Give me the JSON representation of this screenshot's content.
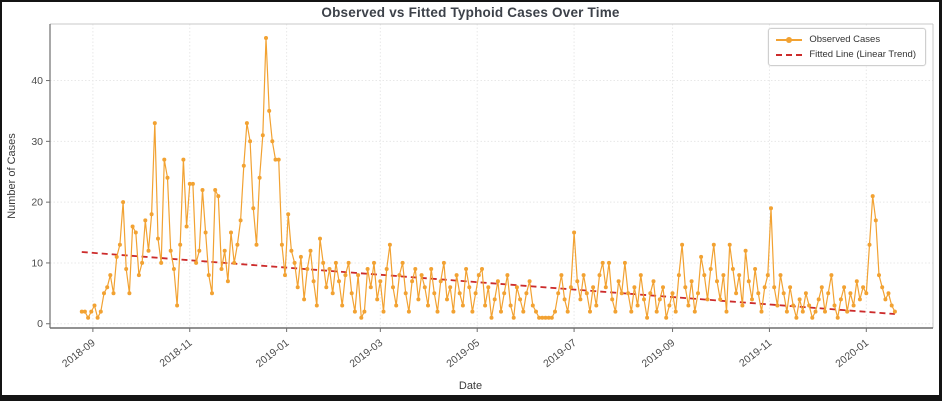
{
  "figure": {
    "title": "Observed vs Fitted Typhoid Cases Over Time",
    "xlabel": "Date",
    "ylabel": "Number of Cases"
  },
  "legend": {
    "items": [
      {
        "label": "Observed Cases",
        "marker": "line-with-dot"
      },
      {
        "label": "Fitted Line (Linear Trend)",
        "marker": "dashed-line"
      }
    ],
    "position": "upper right"
  },
  "colors": {
    "observed": "#F2A232",
    "fitted": "#CC2B2B",
    "title_text": "#3C4149",
    "tick_text": "#4D4D4D",
    "grid": "#E8E8E8",
    "spine_dark": "#6E6E6E",
    "spine_light": "#C9C9C9",
    "frame": "#141414",
    "background": "#FFFFFF"
  },
  "chart_data": {
    "type": "line",
    "title": "Observed vs Fitted Typhoid Cases Over Time",
    "xlabel": "Date",
    "ylabel": "Number of Cases",
    "grid": true,
    "legend_position": "upper right",
    "x_tick_labels": [
      "2018-09",
      "2018-11",
      "2019-01",
      "2019-03",
      "2019-05",
      "2019-07",
      "2019-09",
      "2019-11",
      "2020-01"
    ],
    "x_tick_day_offsets": [
      7,
      68,
      129,
      188,
      249,
      310,
      372,
      433,
      494
    ],
    "y_ticks": [
      0,
      10,
      20,
      30,
      40
    ],
    "ylim": [
      0,
      48
    ],
    "x_start_date": "2018-08-25",
    "x_end_date": "2020-01-19",
    "x_step_days": 2,
    "total_days": 512,
    "series": [
      {
        "name": "Observed Cases",
        "style": "solid-line-with-markers",
        "color": "#F2A232",
        "values": [
          2,
          2,
          1,
          2,
          3,
          1,
          2,
          5,
          6,
          8,
          5,
          11,
          13,
          20,
          9,
          5,
          16,
          15,
          8,
          10,
          17,
          12,
          18,
          33,
          14,
          10,
          27,
          24,
          12,
          9,
          3,
          13,
          27,
          16,
          23,
          23,
          10,
          12,
          22,
          15,
          8,
          5,
          22,
          21,
          9,
          12,
          7,
          15,
          10,
          13,
          17,
          26,
          33,
          30,
          19,
          13,
          24,
          31,
          47,
          35,
          30,
          27,
          27,
          13,
          8,
          18,
          12,
          10,
          6,
          11,
          4,
          9,
          12,
          7,
          3,
          14,
          10,
          6,
          9,
          5,
          10,
          7,
          3,
          8,
          10,
          5,
          2,
          8,
          1,
          2,
          9,
          6,
          10,
          4,
          7,
          2,
          9,
          13,
          6,
          3,
          8,
          10,
          5,
          2,
          7,
          9,
          4,
          8,
          6,
          3,
          9,
          5,
          2,
          7,
          10,
          4,
          6,
          2,
          8,
          5,
          3,
          9,
          6,
          2,
          5,
          8,
          9,
          3,
          6,
          1,
          4,
          7,
          2,
          5,
          8,
          3,
          1,
          6,
          4,
          2,
          5,
          7,
          3,
          2,
          1,
          1,
          1,
          1,
          1,
          2,
          5,
          8,
          4,
          2,
          6,
          15,
          7,
          4,
          8,
          5,
          2,
          6,
          3,
          8,
          10,
          6,
          10,
          4,
          2,
          7,
          5,
          10,
          5,
          2,
          6,
          3,
          8,
          4,
          1,
          5,
          7,
          2,
          4,
          6,
          1,
          3,
          5,
          2,
          8,
          13,
          6,
          3,
          7,
          2,
          5,
          11,
          8,
          4,
          9,
          13,
          7,
          4,
          8,
          2,
          13,
          9,
          5,
          8,
          3,
          12,
          7,
          4,
          9,
          5,
          2,
          6,
          8,
          19,
          6,
          3,
          8,
          5,
          2,
          6,
          3,
          1,
          4,
          2,
          5,
          3,
          1,
          2,
          4,
          6,
          2,
          5,
          8,
          3,
          1,
          4,
          6,
          2,
          5,
          3,
          7,
          4,
          6,
          5,
          13,
          21,
          17,
          8,
          6,
          4,
          5,
          3,
          2
        ]
      },
      {
        "name": "Fitted Line (Linear Trend)",
        "style": "dashed-line",
        "color": "#CC2B2B",
        "trend": {
          "start_value": 11.8,
          "end_value": 1.6
        }
      }
    ]
  }
}
